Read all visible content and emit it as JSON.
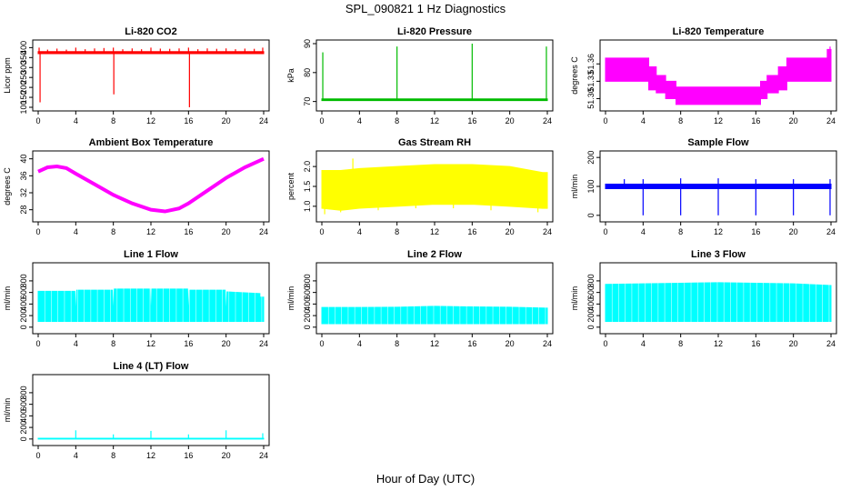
{
  "figure": {
    "title": "SPL_090821  1 Hz Diagnostics",
    "xlabel": "Hour of Day (UTC)"
  },
  "chart_data": [
    {
      "type": "line",
      "title": "Li-820 CO2",
      "ylabel": "Licor ppm",
      "color": "#ff0000",
      "xlim": [
        0,
        24
      ],
      "ylim": [
        100,
        420
      ],
      "x_ticks": [
        0,
        4,
        8,
        12,
        16,
        20,
        24
      ],
      "y_ticks": [
        100,
        150,
        200,
        250,
        300,
        350,
        400
      ],
      "y_tick_labels": [
        "100",
        "150",
        "200",
        "250",
        "300",
        "350",
        "400"
      ],
      "band": {
        "x": [
          0,
          24
        ],
        "low": [
          370,
          370
        ],
        "high": [
          380,
          380
        ]
      },
      "series": [
        {
          "values": [
            [
              0,
              375
            ],
            [
              4,
              375
            ],
            [
              8,
              375
            ],
            [
              12,
              375
            ],
            [
              16,
              375
            ],
            [
              20,
              375
            ],
            [
              24,
              375
            ]
          ]
        }
      ],
      "spikes": [
        {
          "x": 0.2,
          "y": 125
        },
        {
          "x": 0.1,
          "y": 400
        },
        {
          "x": 1,
          "y": 390
        },
        {
          "x": 2,
          "y": 395
        },
        {
          "x": 3,
          "y": 390
        },
        {
          "x": 4,
          "y": 400
        },
        {
          "x": 5,
          "y": 392
        },
        {
          "x": 6,
          "y": 396
        },
        {
          "x": 7,
          "y": 398
        },
        {
          "x": 8,
          "y": 400
        },
        {
          "x": 8.05,
          "y": 165
        },
        {
          "x": 9,
          "y": 392
        },
        {
          "x": 10,
          "y": 396
        },
        {
          "x": 11,
          "y": 392
        },
        {
          "x": 12,
          "y": 400
        },
        {
          "x": 13,
          "y": 395
        },
        {
          "x": 14,
          "y": 394
        },
        {
          "x": 15,
          "y": 396
        },
        {
          "x": 16,
          "y": 400
        },
        {
          "x": 16.1,
          "y": 100
        },
        {
          "x": 17,
          "y": 392
        },
        {
          "x": 18,
          "y": 396
        },
        {
          "x": 19,
          "y": 394
        },
        {
          "x": 20,
          "y": 396
        },
        {
          "x": 21,
          "y": 392
        },
        {
          "x": 22,
          "y": 395
        },
        {
          "x": 23,
          "y": 394
        },
        {
          "x": 23.9,
          "y": 400
        }
      ]
    },
    {
      "type": "line",
      "title": "Li-820 Pressure",
      "ylabel": "kPa",
      "color": "#00bb00",
      "xlim": [
        0,
        24
      ],
      "ylim": [
        68,
        90
      ],
      "x_ticks": [
        0,
        4,
        8,
        12,
        16,
        20,
        24
      ],
      "y_ticks": [
        70,
        80,
        90
      ],
      "y_tick_labels": [
        "70",
        "80",
        "90"
      ],
      "band": {
        "x": [
          0,
          24
        ],
        "low": [
          70.3,
          70.3
        ],
        "high": [
          70.9,
          70.9
        ]
      },
      "series": [
        {
          "values": [
            [
              0,
              70.6
            ],
            [
              24,
              70.6
            ]
          ]
        }
      ],
      "spikes": [
        {
          "x": 0.1,
          "y": 87
        },
        {
          "x": 8,
          "y": 89
        },
        {
          "x": 16,
          "y": 90
        },
        {
          "x": 23.9,
          "y": 89
        }
      ]
    },
    {
      "type": "area",
      "title": "Li-820 Temperature",
      "ylabel": "degrees C",
      "color": "#ff00ff",
      "xlim": [
        0,
        24
      ],
      "ylim": [
        51.285,
        51.395
      ],
      "x_ticks": [
        0,
        4,
        8,
        12,
        16,
        20,
        24
      ],
      "y_ticks": [
        51.3,
        51.33,
        51.36
      ],
      "y_tick_labels": [
        "51.30",
        "51.33",
        "51.36"
      ],
      "band": {
        "x": [
          0,
          4.6,
          4.6,
          5.4,
          5.4,
          6.4,
          6.4,
          7.5,
          7.5,
          8.2,
          8.2,
          14.6,
          14.6,
          16.5,
          16.5,
          17.2,
          17.2,
          18.4,
          18.4,
          19.3,
          19.3,
          20.3,
          20.3,
          23.6,
          23.6,
          24
        ],
        "low": [
          51.33,
          51.33,
          51.315,
          51.315,
          51.31,
          51.31,
          51.3,
          51.3,
          51.29,
          51.29,
          51.29,
          51.29,
          51.29,
          51.29,
          51.3,
          51.3,
          51.31,
          51.31,
          51.315,
          51.315,
          51.33,
          51.33,
          51.33,
          51.33,
          51.33,
          51.33
        ],
        "high": [
          51.37,
          51.37,
          51.355,
          51.355,
          51.34,
          51.34,
          51.33,
          51.33,
          51.32,
          51.32,
          51.32,
          51.32,
          51.32,
          51.32,
          51.33,
          51.33,
          51.34,
          51.34,
          51.355,
          51.355,
          51.37,
          51.37,
          51.37,
          51.37,
          51.385,
          51.385
        ]
      },
      "series": [],
      "spikes": [
        {
          "x": 23.9,
          "y": 51.39
        }
      ]
    },
    {
      "type": "line",
      "title": "Ambient Box Temperature",
      "ylabel": "degrees C",
      "color": "#ff00ff",
      "xlim": [
        0,
        24
      ],
      "ylim": [
        26,
        41
      ],
      "x_ticks": [
        0,
        4,
        8,
        12,
        16,
        20,
        24
      ],
      "y_ticks": [
        28,
        32,
        36,
        40
      ],
      "y_tick_labels": [
        "28",
        "32",
        "36",
        "40"
      ],
      "band": null,
      "series": [
        {
          "values": [
            [
              0,
              37
            ],
            [
              1,
              38
            ],
            [
              2,
              38.2
            ],
            [
              3,
              37.8
            ],
            [
              4,
              36.5
            ],
            [
              6,
              34
            ],
            [
              8,
              31.5
            ],
            [
              10,
              29.5
            ],
            [
              12,
              28
            ],
            [
              13.5,
              27.6
            ],
            [
              15,
              28.3
            ],
            [
              16,
              29.5
            ],
            [
              18,
              32.5
            ],
            [
              20,
              35.5
            ],
            [
              22,
              38
            ],
            [
              24,
              40
            ]
          ]
        }
      ],
      "line_width": 4,
      "spikes": []
    },
    {
      "type": "area",
      "title": "Gas Stream RH",
      "ylabel": "percent",
      "color": "#ffff00",
      "xlim": [
        0,
        24
      ],
      "ylim": [
        0.7,
        2.3
      ],
      "x_ticks": [
        0,
        4,
        8,
        12,
        16,
        20,
        24
      ],
      "y_ticks": [
        1.0,
        1.5,
        2.0
      ],
      "y_tick_labels": [
        "1.0",
        "1.5",
        "2.0"
      ],
      "band": {
        "x": [
          0,
          2,
          4,
          8,
          12,
          16,
          20,
          23.5,
          24
        ],
        "low": [
          0.95,
          0.9,
          0.95,
          1.0,
          1.05,
          1.05,
          1.0,
          0.95,
          0.95
        ],
        "high": [
          1.9,
          1.9,
          1.95,
          2.0,
          2.05,
          2.05,
          2.0,
          1.85,
          1.85
        ]
      },
      "series": [],
      "spikes": [
        {
          "x": 0.3,
          "y": 0.8
        },
        {
          "x": 2,
          "y": 0.85
        },
        {
          "x": 3.3,
          "y": 2.2
        },
        {
          "x": 6,
          "y": 0.9
        },
        {
          "x": 10,
          "y": 0.95
        },
        {
          "x": 14,
          "y": 0.95
        },
        {
          "x": 18,
          "y": 0.9
        },
        {
          "x": 23,
          "y": 0.85
        }
      ]
    },
    {
      "type": "line",
      "title": "Sample Flow",
      "ylabel": "ml/min",
      "color": "#0000ff",
      "xlim": [
        0,
        24
      ],
      "ylim": [
        -10,
        210
      ],
      "x_ticks": [
        0,
        4,
        8,
        12,
        16,
        20,
        24
      ],
      "y_ticks": [
        0,
        100,
        200
      ],
      "y_tick_labels": [
        "0",
        "100",
        "200"
      ],
      "band": {
        "x": [
          0,
          24
        ],
        "low": [
          92,
          92
        ],
        "high": [
          108,
          108
        ]
      },
      "series": [
        {
          "values": [
            [
              0,
              100
            ],
            [
              24,
              100
            ]
          ]
        }
      ],
      "spikes": [
        {
          "x": 4,
          "y": 0
        },
        {
          "x": 8,
          "y": 0
        },
        {
          "x": 12,
          "y": 0
        },
        {
          "x": 16,
          "y": 0
        },
        {
          "x": 20,
          "y": 0
        },
        {
          "x": 23.9,
          "y": 0
        },
        {
          "x": 2,
          "y": 125
        },
        {
          "x": 4,
          "y": 125
        },
        {
          "x": 8,
          "y": 128
        },
        {
          "x": 12,
          "y": 128
        },
        {
          "x": 16,
          "y": 125
        },
        {
          "x": 20,
          "y": 125
        },
        {
          "x": 23.9,
          "y": 125
        }
      ]
    },
    {
      "type": "area",
      "title": "Line 1 Flow",
      "ylabel": "ml/min",
      "color": "#00ffff",
      "xlim": [
        0,
        24
      ],
      "ylim": [
        -50,
        1050
      ],
      "x_ticks": [
        0,
        4,
        8,
        12,
        16,
        20,
        24
      ],
      "y_ticks": [
        0,
        200,
        400,
        600,
        800
      ],
      "y_tick_labels": [
        "0",
        "200",
        "400",
        "600",
        "800"
      ],
      "band": {
        "x": [
          0,
          3.9,
          4.0,
          4.1,
          7.9,
          8.0,
          8.1,
          11.9,
          12.0,
          12.1,
          15.9,
          16.0,
          16.1,
          19.9,
          20.0,
          20.1,
          23.6,
          23.6,
          24
        ],
        "low": [
          100,
          100,
          100,
          100,
          100,
          100,
          100,
          100,
          100,
          100,
          100,
          100,
          100,
          100,
          100,
          100,
          100,
          100,
          100
        ],
        "high": [
          620,
          620,
          100,
          640,
          640,
          100,
          660,
          660,
          100,
          660,
          660,
          100,
          640,
          640,
          100,
          610,
          580,
          520,
          520
        ]
      },
      "series": [],
      "spikes": []
    },
    {
      "type": "area",
      "title": "Line 2 Flow",
      "ylabel": "ml/min",
      "color": "#00ffff",
      "xlim": [
        0,
        24
      ],
      "ylim": [
        -50,
        1050
      ],
      "x_ticks": [
        0,
        4,
        8,
        12,
        16,
        20,
        24
      ],
      "y_ticks": [
        0,
        200,
        400,
        600,
        800
      ],
      "y_tick_labels": [
        "0",
        "200",
        "400",
        "600",
        "800"
      ],
      "band": {
        "x": [
          0,
          4,
          8,
          12,
          16,
          20,
          24
        ],
        "low": [
          60,
          60,
          60,
          60,
          60,
          60,
          60
        ],
        "high": [
          340,
          340,
          345,
          360,
          350,
          345,
          330
        ]
      },
      "series": [],
      "spikes": []
    },
    {
      "type": "area",
      "title": "Line 3 Flow",
      "ylabel": "ml/min",
      "color": "#00ffff",
      "xlim": [
        0,
        24
      ],
      "ylim": [
        -50,
        1050
      ],
      "x_ticks": [
        0,
        4,
        8,
        12,
        16,
        20,
        24
      ],
      "y_ticks": [
        0,
        200,
        400,
        600,
        800
      ],
      "y_tick_labels": [
        "0",
        "200",
        "400",
        "600",
        "800"
      ],
      "band": {
        "x": [
          0,
          4,
          8,
          12,
          16,
          20,
          24
        ],
        "low": [
          100,
          100,
          100,
          100,
          100,
          100,
          100
        ],
        "high": [
          740,
          750,
          760,
          770,
          760,
          750,
          720
        ]
      },
      "series": [],
      "spikes": []
    },
    {
      "type": "line",
      "title": "Line 4 (LT) Flow",
      "ylabel": "ml/min",
      "color": "#00ffff",
      "xlim": [
        0,
        24
      ],
      "ylim": [
        -50,
        1050
      ],
      "x_ticks": [
        0,
        4,
        8,
        12,
        16,
        20,
        24
      ],
      "y_ticks": [
        0,
        200,
        400,
        600,
        800
      ],
      "y_tick_labels": [
        "0",
        "200",
        "400",
        "600",
        "800"
      ],
      "band": {
        "x": [
          0,
          24
        ],
        "low": [
          0,
          0
        ],
        "high": [
          12,
          12
        ]
      },
      "series": [
        {
          "values": [
            [
              0,
              5
            ],
            [
              24,
              5
            ]
          ]
        }
      ],
      "spikes": [
        {
          "x": 4,
          "y": 150
        },
        {
          "x": 8,
          "y": 80
        },
        {
          "x": 12,
          "y": 140
        },
        {
          "x": 16,
          "y": 80
        },
        {
          "x": 20,
          "y": 150
        },
        {
          "x": 23.9,
          "y": 100
        }
      ]
    }
  ]
}
